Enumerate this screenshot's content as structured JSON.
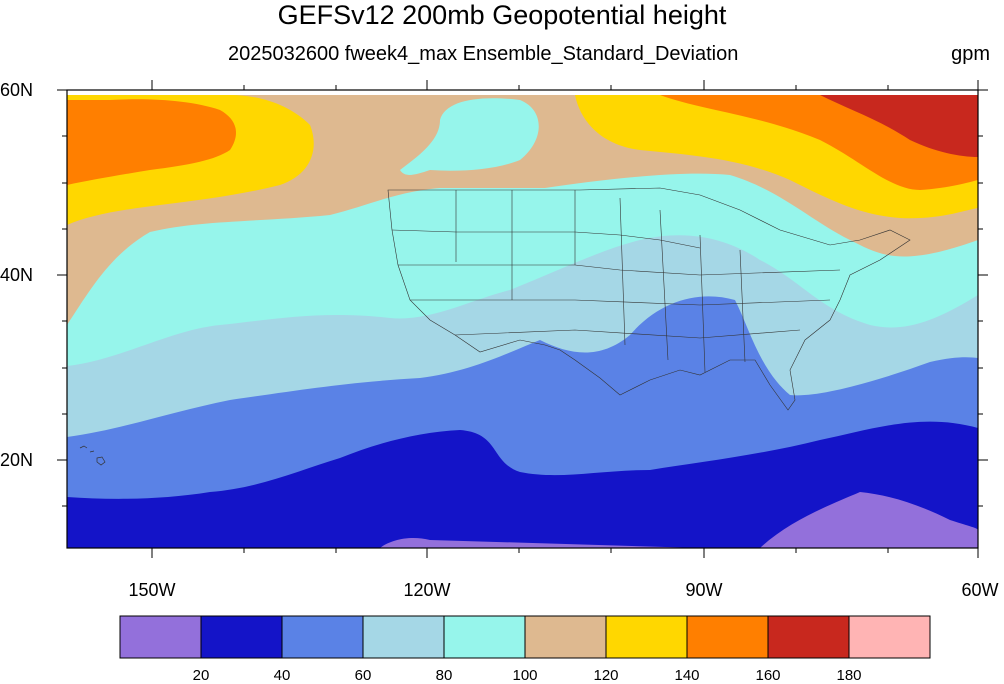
{
  "map": {
    "title": "GEFSv12 200mb Geopotential height",
    "subtitle": "2025032600 fweek4_max Ensemble_Standard_Deviation",
    "units": "gpm",
    "lat_labels": [
      "60N",
      "40N",
      "20N"
    ],
    "lon_labels": [
      "150W",
      "120W",
      "90W",
      "60W"
    ],
    "extent": {
      "lon": [
        -159,
        -60
      ],
      "lat": [
        10,
        60
      ]
    }
  },
  "colorbar": {
    "labels": [
      "20",
      "40",
      "60",
      "80",
      "100",
      "120",
      "140",
      "160",
      "180"
    ],
    "colors": [
      "#9370db",
      "#1414c8",
      "#5a82e6",
      "#a5d7e6",
      "#96f5eb",
      "#deb990",
      "#ffd700",
      "#ff7f00",
      "#c8281e",
      "#ffb4b4"
    ]
  }
}
